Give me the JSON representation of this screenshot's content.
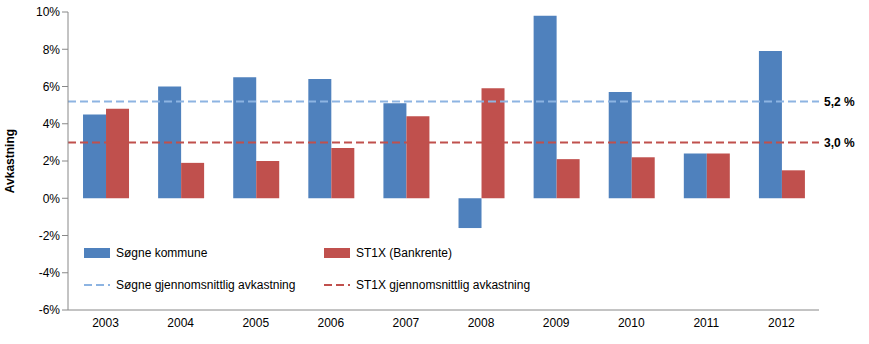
{
  "chart_data": {
    "type": "bar",
    "y_label": "Avkastning",
    "categories": [
      "2003",
      "2004",
      "2005",
      "2006",
      "2007",
      "2008",
      "2009",
      "2010",
      "2011",
      "2012"
    ],
    "series": [
      {
        "name": "Søgne kommune",
        "color": "#4F81BD",
        "values": [
          4.5,
          6.0,
          6.5,
          6.4,
          5.1,
          -1.6,
          9.8,
          5.7,
          2.4,
          7.9
        ]
      },
      {
        "name": "ST1X (Bankrente)",
        "color": "#C0504D",
        "values": [
          4.8,
          1.9,
          2.0,
          2.7,
          4.4,
          5.9,
          2.1,
          2.2,
          2.4,
          1.5
        ]
      }
    ],
    "average_lines": [
      {
        "name": "Søgne gjennomsnittlig avkastning",
        "value": 5.2,
        "label": "5,2 %",
        "color": "#8DB4E2",
        "line_style": "dashed"
      },
      {
        "name": "ST1X gjennomsnittlig avkastning",
        "value": 3.0,
        "label": "3,0 %",
        "color": "#C0504D",
        "line_style": "dashed"
      }
    ],
    "ylim": [
      -6,
      10
    ],
    "yticks": [
      {
        "value": -6,
        "label": "-6%"
      },
      {
        "value": -4,
        "label": "-4%"
      },
      {
        "value": -2,
        "label": "-2%"
      },
      {
        "value": 0,
        "label": "0%"
      },
      {
        "value": 2,
        "label": "2%"
      },
      {
        "value": 4,
        "label": "4%"
      },
      {
        "value": 6,
        "label": "6%"
      },
      {
        "value": 8,
        "label": "8%"
      },
      {
        "value": 10,
        "label": "10%"
      }
    ],
    "grid": false,
    "legend": "lower left"
  }
}
